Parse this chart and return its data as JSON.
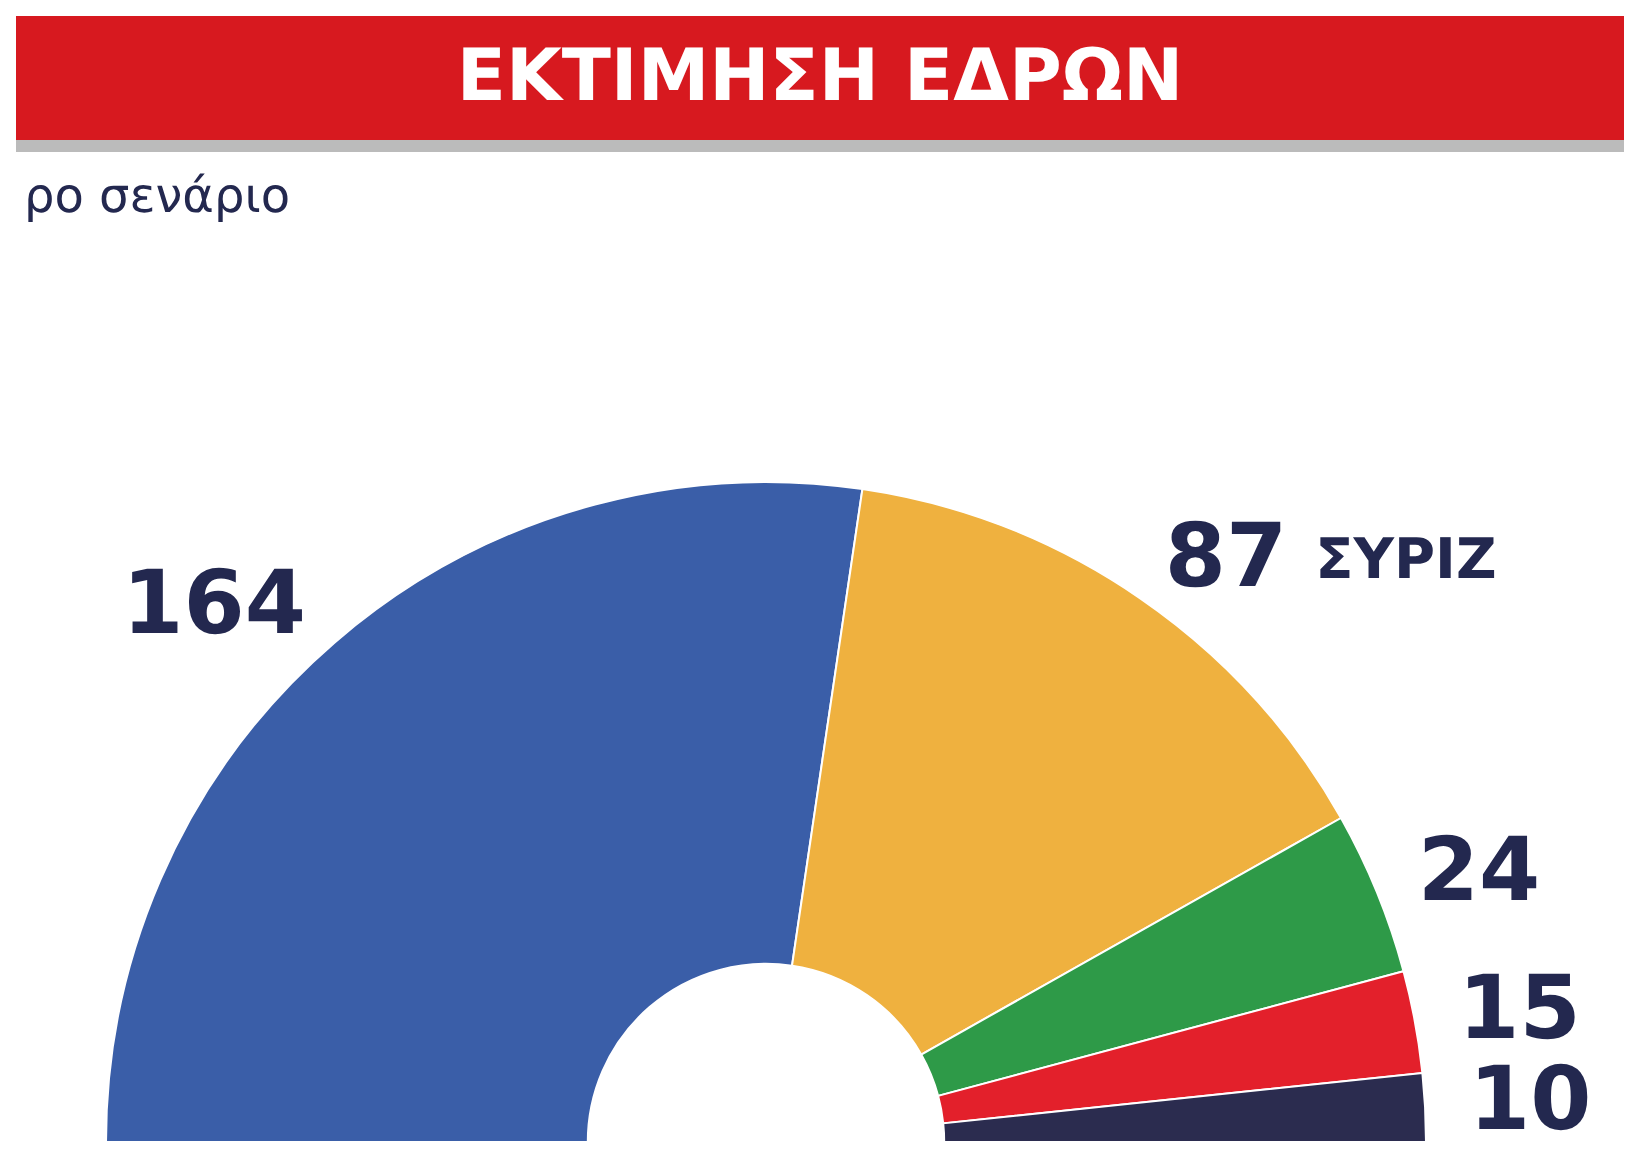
{
  "chart_data": {
    "type": "donut",
    "title": "ΕΚΤΙΜΗΣΗ ΕΔΡΩΝ",
    "subtitle": "ρο σενάριο",
    "categories": [
      null,
      "ΣΥΡΙΖ",
      null,
      null,
      null
    ],
    "values": [
      164,
      87,
      24,
      15,
      10
    ],
    "colors": [
      "#3a5ea8",
      "#efb13f",
      "#2e9a48",
      "#e3202b",
      "#2b2c4f"
    ],
    "data_labels": true
  }
}
